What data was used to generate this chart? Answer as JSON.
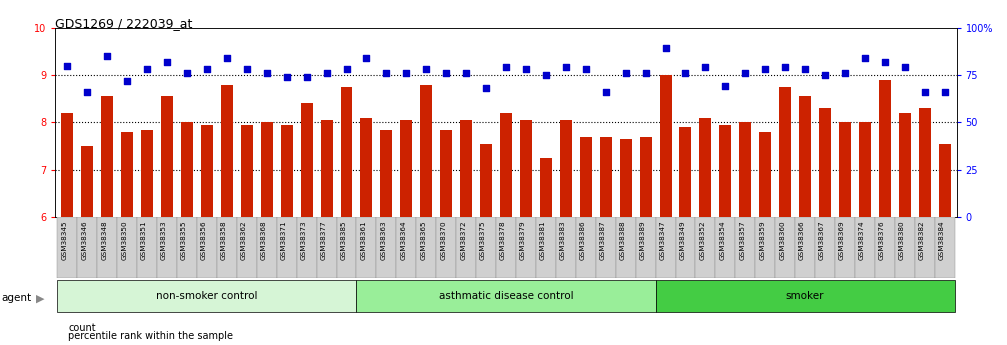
{
  "title": "GDS1269 / 222039_at",
  "samples": [
    "GSM38345",
    "GSM38346",
    "GSM38348",
    "GSM38350",
    "GSM38351",
    "GSM38353",
    "GSM38355",
    "GSM38356",
    "GSM38358",
    "GSM38362",
    "GSM38368",
    "GSM38371",
    "GSM38373",
    "GSM38377",
    "GSM38385",
    "GSM38361",
    "GSM38363",
    "GSM38364",
    "GSM38365",
    "GSM38370",
    "GSM38372",
    "GSM38375",
    "GSM38378",
    "GSM38379",
    "GSM38381",
    "GSM38383",
    "GSM38386",
    "GSM38387",
    "GSM38388",
    "GSM38389",
    "GSM38347",
    "GSM38349",
    "GSM38352",
    "GSM38354",
    "GSM38357",
    "GSM38359",
    "GSM38360",
    "GSM38366",
    "GSM38367",
    "GSM38369",
    "GSM38374",
    "GSM38376",
    "GSM38380",
    "GSM38382",
    "GSM38384"
  ],
  "bar_values": [
    8.2,
    7.5,
    8.55,
    7.8,
    7.85,
    8.55,
    8.0,
    7.95,
    8.8,
    7.95,
    8.0,
    7.95,
    8.4,
    8.05,
    8.75,
    8.1,
    7.85,
    8.05,
    8.8,
    7.85,
    8.05,
    7.55,
    8.2,
    8.05,
    7.25,
    8.05,
    7.7,
    7.7,
    7.65,
    7.7,
    9.0,
    7.9,
    8.1,
    7.95,
    8.0,
    7.8,
    8.75,
    8.55,
    8.3,
    8.0,
    8.0,
    8.9,
    8.2,
    8.3,
    7.55
  ],
  "scatter_pct": [
    80,
    66,
    85,
    72,
    78,
    82,
    76,
    78,
    84,
    78,
    76,
    74,
    74,
    76,
    78,
    84,
    76,
    76,
    78,
    76,
    76,
    68,
    79,
    78,
    75,
    79,
    78,
    66,
    76,
    76,
    89,
    76,
    79,
    69,
    76,
    78,
    79,
    78,
    75,
    76,
    84,
    82,
    79,
    66,
    66
  ],
  "groups": [
    {
      "label": "non-smoker control",
      "start": 0,
      "end": 15,
      "color": "#d6f5d6"
    },
    {
      "label": "asthmatic disease control",
      "start": 15,
      "end": 30,
      "color": "#99ee99"
    },
    {
      "label": "smoker",
      "start": 30,
      "end": 45,
      "color": "#44cc44"
    }
  ],
  "bar_color": "#cc2200",
  "scatter_color": "#0000cc",
  "ylim_left": [
    6,
    10
  ],
  "ylim_right": [
    0,
    100
  ],
  "yticks_left": [
    6,
    7,
    8,
    9,
    10
  ],
  "yticks_right": [
    0,
    25,
    50,
    75,
    100
  ],
  "yticklabels_right": [
    "0",
    "25",
    "50",
    "75",
    "100%"
  ],
  "hlines": [
    7,
    8,
    9
  ],
  "legend_count_label": "count",
  "legend_pct_label": "percentile rank within the sample",
  "agent_label": "agent"
}
